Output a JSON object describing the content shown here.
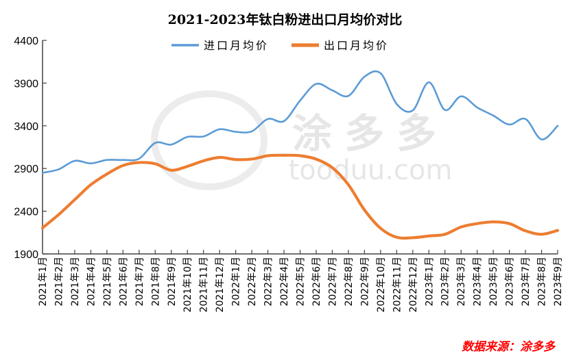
{
  "chart_data": {
    "type": "line",
    "title": "2021-2023年钛白粉进出口月均价对比",
    "xlabel": "",
    "ylabel": "",
    "ylim": [
      1900,
      4400
    ],
    "yticks": [
      1900,
      2400,
      2900,
      3400,
      3900,
      4400
    ],
    "grid": false,
    "legend": "top",
    "smooth": true,
    "categories": [
      "2021年1月",
      "2021年2月",
      "2021年3月",
      "2021年4月",
      "2021年5月",
      "2021年6月",
      "2021年7月",
      "2021年8月",
      "2021年9月",
      "2021年10月",
      "2021年11月",
      "2021年12月",
      "2022年1月",
      "2022年2月",
      "2022年3月",
      "2022年4月",
      "2022年5月",
      "2022年6月",
      "2022年7月",
      "2022年8月",
      "2022年9月",
      "2022年10月",
      "2022年11月",
      "2022年12月",
      "2023年1月",
      "2023年2月",
      "2023年3月",
      "2023年4月",
      "2023年5月",
      "2023年6月",
      "2023年7月",
      "2023年8月",
      "2023年9月"
    ],
    "series": [
      {
        "name": "进口月均价",
        "color": "#5b9bd5",
        "values": [
          2850,
          2890,
          2990,
          2960,
          3000,
          3000,
          3015,
          3200,
          3180,
          3270,
          3275,
          3360,
          3330,
          3335,
          3480,
          3455,
          3695,
          3890,
          3815,
          3750,
          3975,
          4015,
          3655,
          3580,
          3910,
          3585,
          3745,
          3615,
          3520,
          3415,
          3480,
          3240,
          3400
        ]
      },
      {
        "name": "出口月均价",
        "color": "#ed7d31",
        "values": [
          2205,
          2360,
          2535,
          2710,
          2835,
          2935,
          2970,
          2955,
          2880,
          2925,
          2990,
          3030,
          3005,
          3010,
          3050,
          3055,
          3050,
          3010,
          2910,
          2710,
          2415,
          2200,
          2095,
          2090,
          2110,
          2130,
          2215,
          2255,
          2275,
          2255,
          2170,
          2130,
          2175
        ]
      }
    ]
  },
  "source": "数据来源：涂多多",
  "watermark": "涂多多 tooduu.com"
}
